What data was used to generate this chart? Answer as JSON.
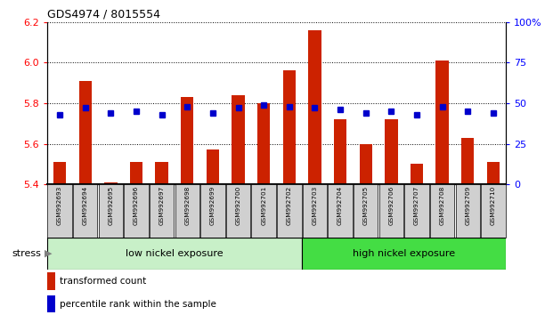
{
  "title": "GDS4974 / 8015554",
  "samples": [
    "GSM992693",
    "GSM992694",
    "GSM992695",
    "GSM992696",
    "GSM992697",
    "GSM992698",
    "GSM992699",
    "GSM992700",
    "GSM992701",
    "GSM992702",
    "GSM992703",
    "GSM992704",
    "GSM992705",
    "GSM992706",
    "GSM992707",
    "GSM992708",
    "GSM992709",
    "GSM992710"
  ],
  "transformed_count": [
    5.51,
    5.91,
    5.41,
    5.51,
    5.51,
    5.83,
    5.57,
    5.84,
    5.8,
    5.96,
    6.16,
    5.72,
    5.6,
    5.72,
    5.5,
    6.01,
    5.63,
    5.51
  ],
  "percentile_rank": [
    43,
    47,
    44,
    45,
    43,
    48,
    44,
    47,
    49,
    48,
    47,
    46,
    44,
    45,
    43,
    48,
    45,
    44
  ],
  "ylim_left": [
    5.4,
    6.2
  ],
  "ylim_right": [
    0,
    100
  ],
  "yticks_left": [
    5.4,
    5.6,
    5.8,
    6.0,
    6.2
  ],
  "yticks_right": [
    0,
    25,
    50,
    75,
    100
  ],
  "ytick_labels_right": [
    "0",
    "25",
    "50",
    "75",
    "100%"
  ],
  "bar_color": "#cc2200",
  "dot_color": "#0000cc",
  "low_nickel_count": 10,
  "high_nickel_count": 8,
  "low_label": "low nickel exposure",
  "high_label": "high nickel exposure",
  "stress_label": "stress",
  "group_low_color": "#c8f0c8",
  "group_high_color": "#44dd44",
  "background_bar": "#d0d0d0",
  "legend_bar_label": "transformed count",
  "legend_dot_label": "percentile rank within the sample",
  "bar_width": 0.5
}
